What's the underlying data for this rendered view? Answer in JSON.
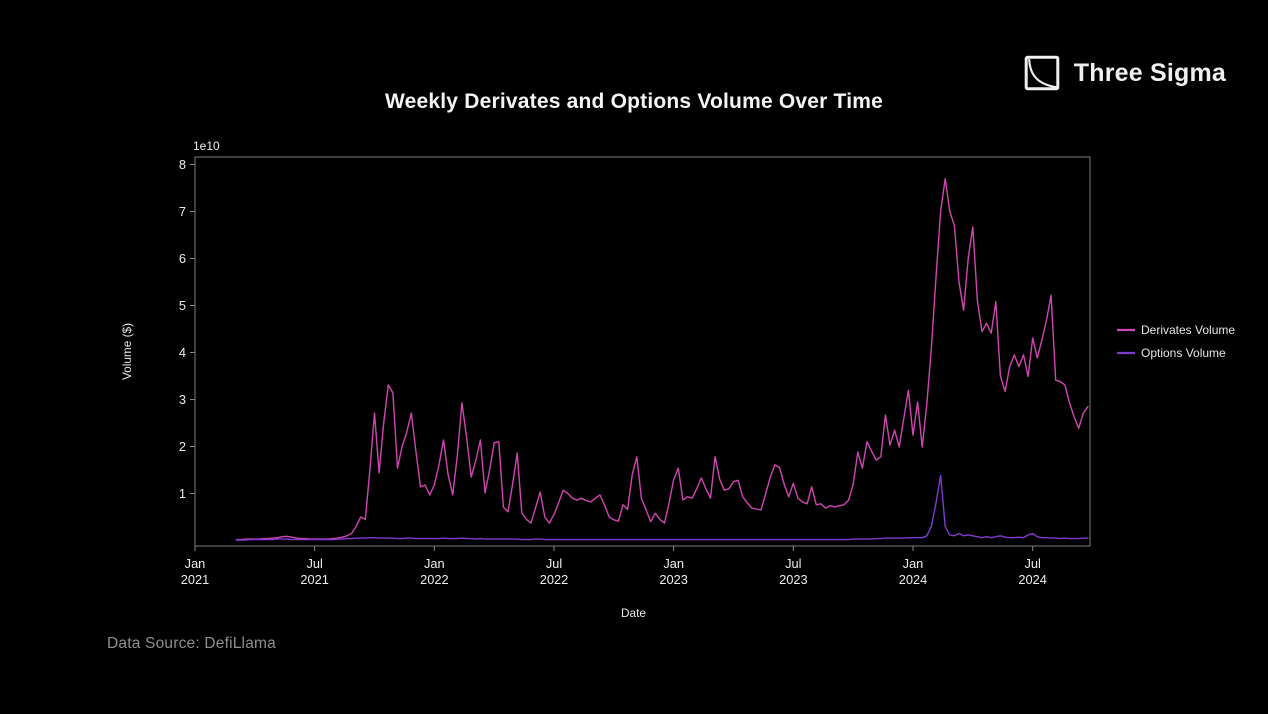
{
  "title": "Weekly Derivates and Options Volume Over Time",
  "logo": {
    "text": "Three Sigma",
    "icon": "three-sigma-decay-curve-icon"
  },
  "footer": {
    "data_source": "Data Source: DefiLlama"
  },
  "colors": {
    "background": "#000000",
    "title_text": "#f5f5f5",
    "muted_text": "#8f8f8f",
    "axis": "#8a8a8a",
    "derivates": "#d145b2",
    "options": "#8139cf"
  },
  "chart_data": {
    "type": "line",
    "title": "Weekly Derivates and Options Volume Over Time",
    "xlabel": "Date",
    "ylabel": "Volume ($)",
    "y_offset_label": "1e10",
    "y_unit_multiplier": "1e10",
    "ylim": [
      0,
      8.16
    ],
    "grid": false,
    "y_ticks": [
      1,
      2,
      3,
      4,
      5,
      6,
      7,
      8
    ],
    "x_ticks": [
      {
        "week": 0,
        "month": "Jan",
        "year": "2021"
      },
      {
        "week": 26,
        "month": "Jul",
        "year": "2021"
      },
      {
        "week": 52,
        "month": "Jan",
        "year": "2022"
      },
      {
        "week": 78,
        "month": "Jul",
        "year": "2022"
      },
      {
        "week": 104,
        "month": "Jan",
        "year": "2023"
      },
      {
        "week": 130,
        "month": "Jul",
        "year": "2023"
      },
      {
        "week": 156,
        "month": "Jan",
        "year": "2024"
      },
      {
        "week": 182,
        "month": "Jul",
        "year": "2024"
      }
    ],
    "legend": {
      "position": "right-outside",
      "entries": [
        "Derivates Volume",
        "Options Volume"
      ]
    },
    "series": [
      {
        "name": "Derivates Volume",
        "color": "#d145b2",
        "start_week": 9,
        "values_unit": "1e10 $",
        "values": [
          0.02,
          0.02,
          0.03,
          0.03,
          0.03,
          0.03,
          0.04,
          0.04,
          0.05,
          0.06,
          0.08,
          0.09,
          0.07,
          0.05,
          0.04,
          0.04,
          0.03,
          0.03,
          0.03,
          0.03,
          0.03,
          0.04,
          0.05,
          0.07,
          0.1,
          0.15,
          0.3,
          0.5,
          0.45,
          1.5,
          2.71,
          1.44,
          2.5,
          3.31,
          3.14,
          1.54,
          2.0,
          2.3,
          2.71,
          1.9,
          1.14,
          1.18,
          0.97,
          1.18,
          1.6,
          2.14,
          1.4,
          0.97,
          1.8,
          2.93,
          2.2,
          1.35,
          1.7,
          2.14,
          1.01,
          1.5,
          2.08,
          2.1,
          0.71,
          0.61,
          1.2,
          1.86,
          0.59,
          0.45,
          0.37,
          0.7,
          1.03,
          0.5,
          0.37,
          0.55,
          0.8,
          1.07,
          1.0,
          0.9,
          0.86,
          0.9,
          0.85,
          0.82,
          0.9,
          0.97,
          0.75,
          0.5,
          0.44,
          0.41,
          0.76,
          0.66,
          1.4,
          1.78,
          0.9,
          0.65,
          0.4,
          0.58,
          0.45,
          0.37,
          0.8,
          1.3,
          1.54,
          0.86,
          0.93,
          0.9,
          1.1,
          1.33,
          1.1,
          0.9,
          1.78,
          1.3,
          1.07,
          1.1,
          1.25,
          1.28,
          0.93,
          0.8,
          0.69,
          0.67,
          0.65,
          1.0,
          1.35,
          1.61,
          1.55,
          1.2,
          0.93,
          1.22,
          0.9,
          0.82,
          0.78,
          1.14,
          0.76,
          0.78,
          0.69,
          0.74,
          0.71,
          0.74,
          0.76,
          0.86,
          1.2,
          1.88,
          1.54,
          2.1,
          1.9,
          1.71,
          1.78,
          2.67,
          2.03,
          2.35,
          1.99,
          2.6,
          3.2,
          2.24,
          2.95,
          1.99,
          2.9,
          4.1,
          5.6,
          7.0,
          7.7,
          7.0,
          6.7,
          5.5,
          4.9,
          6.0,
          6.67,
          5.1,
          4.45,
          4.62,
          4.41,
          5.08,
          3.5,
          3.17,
          3.7,
          3.95,
          3.7,
          3.95,
          3.49,
          4.31,
          3.88,
          4.27,
          4.69,
          5.22,
          3.41,
          3.38,
          3.31,
          2.93,
          2.63,
          2.39,
          2.71,
          2.85
        ]
      },
      {
        "name": "Options Volume",
        "color": "#8139cf",
        "start_week": 9,
        "values_unit": "1e10 $",
        "values": [
          0.01,
          0.01,
          0.01,
          0.02,
          0.02,
          0.02,
          0.02,
          0.02,
          0.02,
          0.03,
          0.03,
          0.03,
          0.02,
          0.02,
          0.02,
          0.02,
          0.02,
          0.02,
          0.02,
          0.02,
          0.02,
          0.02,
          0.03,
          0.03,
          0.04,
          0.04,
          0.05,
          0.05,
          0.05,
          0.06,
          0.06,
          0.05,
          0.05,
          0.05,
          0.05,
          0.04,
          0.04,
          0.05,
          0.05,
          0.04,
          0.04,
          0.04,
          0.04,
          0.04,
          0.04,
          0.05,
          0.04,
          0.04,
          0.04,
          0.05,
          0.04,
          0.04,
          0.03,
          0.04,
          0.03,
          0.03,
          0.03,
          0.03,
          0.03,
          0.03,
          0.03,
          0.03,
          0.02,
          0.02,
          0.02,
          0.03,
          0.03,
          0.02,
          0.02,
          0.02,
          0.02,
          0.02,
          0.02,
          0.02,
          0.02,
          0.02,
          0.02,
          0.02,
          0.02,
          0.02,
          0.02,
          0.02,
          0.02,
          0.02,
          0.02,
          0.02,
          0.02,
          0.02,
          0.02,
          0.02,
          0.02,
          0.02,
          0.02,
          0.02,
          0.02,
          0.02,
          0.02,
          0.02,
          0.02,
          0.02,
          0.02,
          0.02,
          0.02,
          0.02,
          0.02,
          0.02,
          0.02,
          0.02,
          0.02,
          0.02,
          0.02,
          0.02,
          0.02,
          0.02,
          0.02,
          0.02,
          0.02,
          0.02,
          0.02,
          0.02,
          0.02,
          0.02,
          0.02,
          0.02,
          0.02,
          0.02,
          0.02,
          0.02,
          0.02,
          0.02,
          0.02,
          0.02,
          0.02,
          0.02,
          0.03,
          0.03,
          0.03,
          0.03,
          0.03,
          0.04,
          0.04,
          0.05,
          0.05,
          0.05,
          0.05,
          0.05,
          0.06,
          0.06,
          0.06,
          0.06,
          0.1,
          0.3,
          0.8,
          1.39,
          0.3,
          0.12,
          0.1,
          0.15,
          0.1,
          0.12,
          0.1,
          0.08,
          0.06,
          0.08,
          0.06,
          0.08,
          0.1,
          0.07,
          0.06,
          0.06,
          0.07,
          0.06,
          0.12,
          0.15,
          0.08,
          0.06,
          0.06,
          0.05,
          0.05,
          0.04,
          0.05,
          0.04,
          0.04,
          0.04,
          0.05,
          0.05
        ]
      }
    ],
    "data_source": "DefiLlama"
  }
}
